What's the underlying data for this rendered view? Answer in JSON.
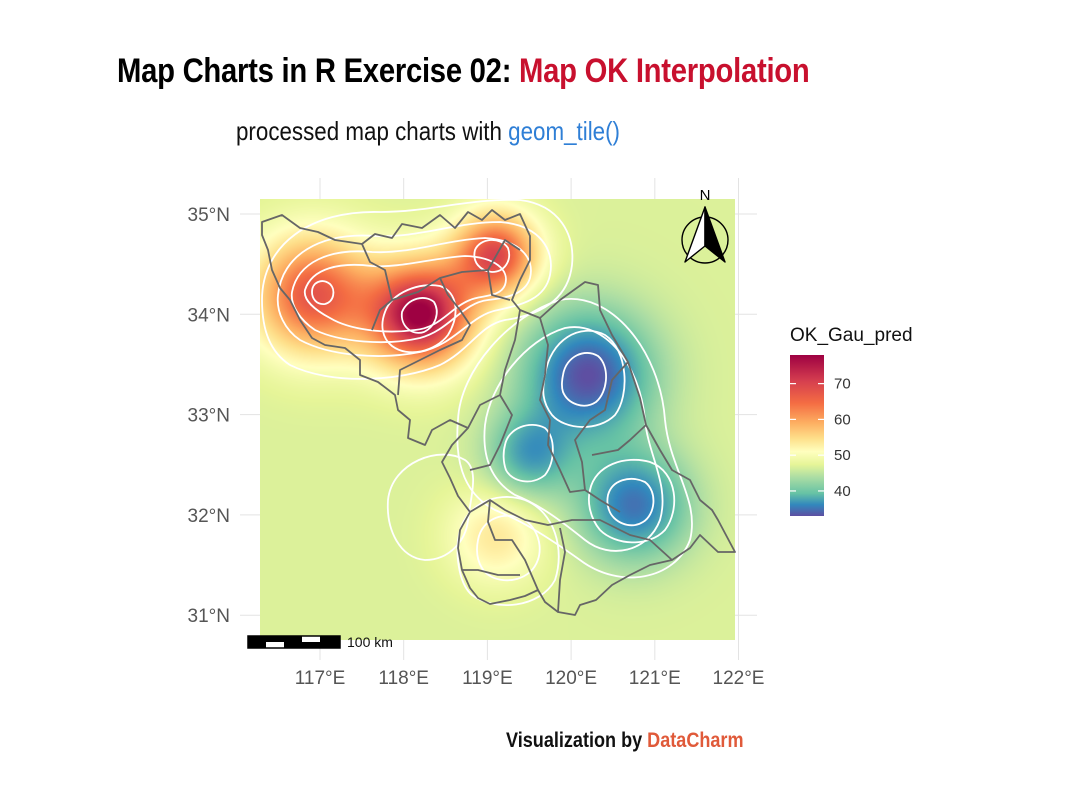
{
  "title": {
    "main": "Map Charts in R Exercise 02: ",
    "highlight": "Map OK Interpolation"
  },
  "subtitle": {
    "main": "processed map charts with ",
    "highlight": "geom_tile()"
  },
  "caption": {
    "main": "Visualization by ",
    "highlight": "DataCharm"
  },
  "colors": {
    "title_highlight": "#c8102e",
    "subtitle_highlight": "#2f7fd6",
    "caption_highlight": "#e05a3a"
  },
  "map": {
    "lon_range": [
      116.3,
      122.3
    ],
    "lat_range": [
      30.7,
      35.3
    ],
    "x_ticks": [
      {
        "value": 117,
        "label": "117°E"
      },
      {
        "value": 118,
        "label": "118°E"
      },
      {
        "value": 119,
        "label": "119°E"
      },
      {
        "value": 120,
        "label": "120°E"
      },
      {
        "value": 121,
        "label": "121°E"
      },
      {
        "value": 122,
        "label": "122°E"
      }
    ],
    "y_ticks": [
      {
        "value": 35,
        "label": "35°N"
      },
      {
        "value": 34,
        "label": "34°N"
      },
      {
        "value": 33,
        "label": "33°N"
      },
      {
        "value": 32,
        "label": "32°N"
      },
      {
        "value": 31,
        "label": "31°N"
      }
    ],
    "north_arrow_label": "N",
    "scale_bar_label": "100 km",
    "legend": {
      "title": "OK_Gau_pred",
      "labels": [
        {
          "value": 70,
          "label": "70"
        },
        {
          "value": 60,
          "label": "60"
        },
        {
          "value": 50,
          "label": "50"
        },
        {
          "value": 40,
          "label": "40"
        }
      ],
      "range": [
        33,
        78
      ],
      "palette": "Spectral (reversed)"
    },
    "hotspots": [
      {
        "lon": 116.9,
        "lat": 34.2,
        "value": 71
      },
      {
        "lon": 118.2,
        "lat": 34.0,
        "value": 78
      },
      {
        "lon": 119.1,
        "lat": 34.6,
        "value": 72
      },
      {
        "lon": 120.2,
        "lat": 33.4,
        "value": 33
      },
      {
        "lon": 119.5,
        "lat": 32.6,
        "value": 40
      },
      {
        "lon": 120.75,
        "lat": 32.1,
        "value": 36
      },
      {
        "lon": 119.1,
        "lat": 31.8,
        "value": 59
      }
    ]
  }
}
